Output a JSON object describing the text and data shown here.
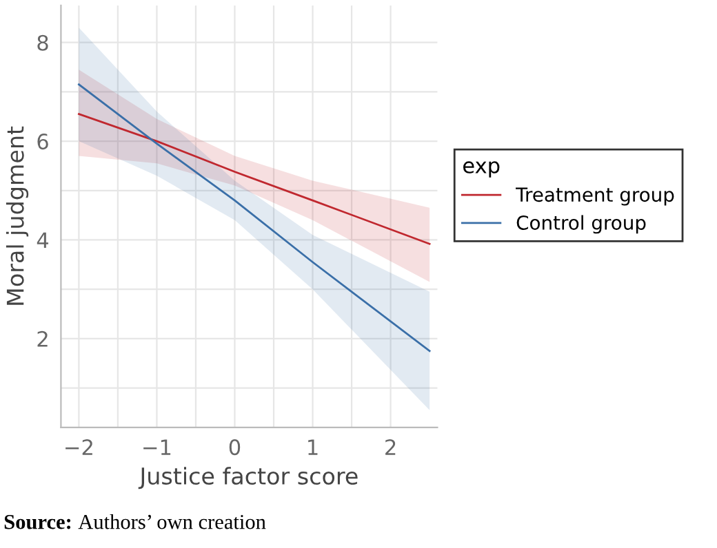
{
  "chart_data": {
    "type": "line",
    "xlabel": "Justice factor score",
    "ylabel": "Moral judgment",
    "legend_title": "exp",
    "x": [
      -2,
      -1,
      0,
      1,
      2.5
    ],
    "series": [
      {
        "name": "Treatment group",
        "color": "#c0282f",
        "values": [
          6.55,
          6.0,
          5.38,
          4.8,
          3.92
        ],
        "lower": [
          5.7,
          5.55,
          5.1,
          4.4,
          3.15
        ],
        "upper": [
          7.45,
          6.45,
          5.7,
          5.2,
          4.65
        ]
      },
      {
        "name": "Control group",
        "color": "#3a6fa8",
        "values": [
          7.15,
          5.95,
          4.8,
          3.55,
          1.75
        ],
        "lower": [
          6.0,
          5.3,
          4.4,
          3.0,
          0.55
        ],
        "upper": [
          8.3,
          6.6,
          5.2,
          4.1,
          2.95
        ]
      }
    ],
    "xlim": [
      -2.23,
      2.6
    ],
    "ylim": [
      0.2,
      8.75
    ],
    "xticks": [
      -2,
      {
        "value": -1.5,
        "label": null
      },
      -1,
      {
        "value": -0.5,
        "label": null
      },
      0,
      {
        "value": 0.5,
        "label": null
      },
      1,
      {
        "value": 1.5,
        "label": null
      },
      2
    ],
    "yticks": [
      {
        "value": 1,
        "label": null
      },
      2,
      {
        "value": 3,
        "label": null
      },
      4,
      {
        "value": 5,
        "label": null
      },
      6,
      {
        "value": 7,
        "label": null
      },
      8
    ],
    "grid": true,
    "legend": "right",
    "line_style": "solid",
    "annotations": [
      "Source: Authors’ own creation"
    ]
  }
}
